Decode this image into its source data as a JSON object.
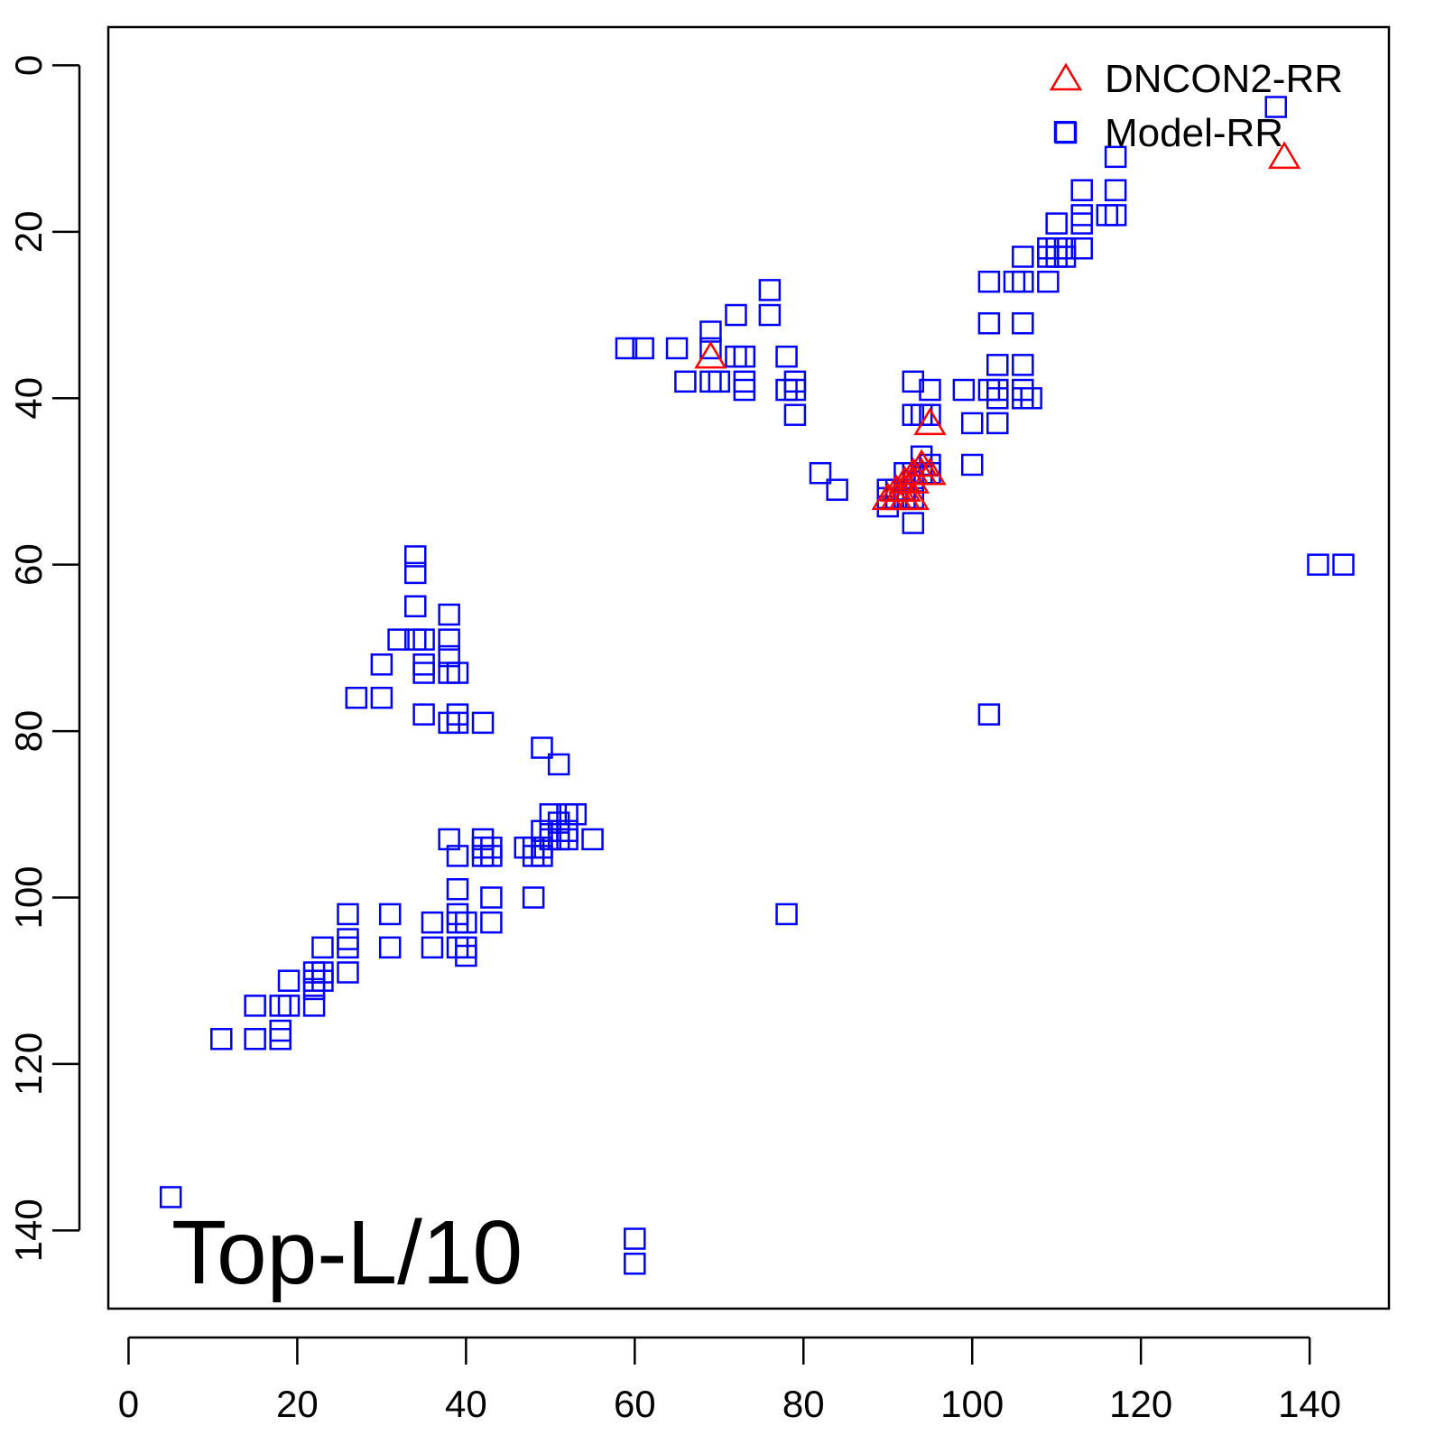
{
  "chart_data": {
    "type": "scatter",
    "title": "",
    "xlabel": "",
    "ylabel": "",
    "xlim": [
      -2.4,
      149.4
    ],
    "ylim": [
      -4.6,
      149.4
    ],
    "y_reversed": true,
    "x_ticks": [
      0,
      20,
      40,
      60,
      80,
      100,
      120,
      140
    ],
    "y_ticks": [
      0,
      20,
      40,
      60,
      80,
      100,
      120,
      140
    ],
    "grid": false,
    "legend_position": "top-right",
    "annotation": "Top-L/10",
    "series": [
      {
        "name": "DNCON2-RR",
        "marker": "triangle",
        "color": "#ff0000",
        "points": [
          [
            69,
            35
          ],
          [
            95,
            43
          ],
          [
            137,
            11
          ],
          [
            94,
            48
          ],
          [
            94,
            49
          ],
          [
            93,
            49
          ],
          [
            93,
            50
          ],
          [
            92,
            50
          ],
          [
            92,
            51
          ],
          [
            91,
            51
          ],
          [
            91,
            52
          ],
          [
            90,
            52
          ],
          [
            92,
            52
          ],
          [
            93,
            52
          ],
          [
            95,
            49
          ]
        ]
      },
      {
        "name": "Model-RR",
        "marker": "square",
        "color": "#0000ff",
        "points": [
          [
            136,
            5
          ],
          [
            111,
            8
          ],
          [
            117,
            11
          ],
          [
            113,
            15
          ],
          [
            117,
            15
          ],
          [
            110,
            19
          ],
          [
            113,
            18
          ],
          [
            113,
            19
          ],
          [
            116,
            18
          ],
          [
            117,
            18
          ],
          [
            109,
            22
          ],
          [
            110,
            22
          ],
          [
            111,
            22
          ],
          [
            113,
            22
          ],
          [
            109,
            23
          ],
          [
            110,
            23
          ],
          [
            111,
            23
          ],
          [
            106,
            23
          ],
          [
            102,
            26
          ],
          [
            105,
            26
          ],
          [
            106,
            26
          ],
          [
            109,
            26
          ],
          [
            102,
            31
          ],
          [
            106,
            31
          ],
          [
            103,
            36
          ],
          [
            106,
            36
          ],
          [
            99,
            39
          ],
          [
            102,
            39
          ],
          [
            103,
            39
          ],
          [
            106,
            39
          ],
          [
            103,
            40
          ],
          [
            106,
            40
          ],
          [
            107,
            40
          ],
          [
            100,
            43
          ],
          [
            103,
            43
          ],
          [
            100,
            48
          ],
          [
            93,
            38
          ],
          [
            95,
            39
          ],
          [
            93,
            42
          ],
          [
            94,
            42
          ],
          [
            95,
            42
          ],
          [
            94,
            47
          ],
          [
            95,
            48
          ],
          [
            95,
            49
          ],
          [
            93,
            49
          ],
          [
            92,
            49
          ],
          [
            94,
            49
          ],
          [
            93,
            50
          ],
          [
            92,
            51
          ],
          [
            91,
            51
          ],
          [
            90,
            51
          ],
          [
            90,
            52
          ],
          [
            91,
            52
          ],
          [
            92,
            52
          ],
          [
            93,
            52
          ],
          [
            90,
            53
          ],
          [
            93,
            55
          ],
          [
            82,
            49
          ],
          [
            84,
            51
          ],
          [
            76,
            27
          ],
          [
            76,
            30
          ],
          [
            72,
            30
          ],
          [
            69,
            32
          ],
          [
            69,
            34
          ],
          [
            59,
            34
          ],
          [
            61,
            34
          ],
          [
            65,
            34
          ],
          [
            72,
            35
          ],
          [
            73,
            35
          ],
          [
            78,
            35
          ],
          [
            66,
            38
          ],
          [
            69,
            38
          ],
          [
            70,
            38
          ],
          [
            73,
            38
          ],
          [
            79,
            38
          ],
          [
            73,
            39
          ],
          [
            78,
            39
          ],
          [
            79,
            39
          ],
          [
            79,
            42
          ],
          [
            34,
            59
          ],
          [
            34,
            61
          ],
          [
            34,
            65
          ],
          [
            38,
            66
          ],
          [
            32,
            69
          ],
          [
            34,
            69
          ],
          [
            35,
            69
          ],
          [
            38,
            69
          ],
          [
            38,
            71
          ],
          [
            30,
            72
          ],
          [
            35,
            72
          ],
          [
            35,
            73
          ],
          [
            38,
            73
          ],
          [
            39,
            73
          ],
          [
            27,
            76
          ],
          [
            30,
            76
          ],
          [
            35,
            78
          ],
          [
            39,
            78
          ],
          [
            38,
            79
          ],
          [
            39,
            79
          ],
          [
            42,
            79
          ],
          [
            49,
            82
          ],
          [
            51,
            84
          ],
          [
            50,
            90
          ],
          [
            52,
            90
          ],
          [
            53,
            90
          ],
          [
            51,
            91
          ],
          [
            50,
            92
          ],
          [
            51,
            92
          ],
          [
            49,
            92
          ],
          [
            52,
            92
          ],
          [
            55,
            93
          ],
          [
            50,
            93
          ],
          [
            51,
            93
          ],
          [
            52,
            93
          ],
          [
            38,
            93
          ],
          [
            42,
            93
          ],
          [
            42,
            94
          ],
          [
            43,
            94
          ],
          [
            47,
            94
          ],
          [
            48,
            94
          ],
          [
            49,
            94
          ],
          [
            48,
            95
          ],
          [
            49,
            95
          ],
          [
            39,
            95
          ],
          [
            42,
            95
          ],
          [
            43,
            95
          ],
          [
            39,
            99
          ],
          [
            43,
            100
          ],
          [
            48,
            100
          ],
          [
            26,
            102
          ],
          [
            31,
            102
          ],
          [
            39,
            102
          ],
          [
            78,
            102
          ],
          [
            36,
            103
          ],
          [
            39,
            103
          ],
          [
            40,
            103
          ],
          [
            43,
            103
          ],
          [
            26,
            105
          ],
          [
            26,
            106
          ],
          [
            23,
            106
          ],
          [
            31,
            106
          ],
          [
            36,
            106
          ],
          [
            39,
            106
          ],
          [
            40,
            106
          ],
          [
            40,
            107
          ],
          [
            23,
            109
          ],
          [
            22,
            109
          ],
          [
            26,
            109
          ],
          [
            22,
            110
          ],
          [
            23,
            110
          ],
          [
            19,
            110
          ],
          [
            22,
            111
          ],
          [
            15,
            113
          ],
          [
            18,
            113
          ],
          [
            19,
            113
          ],
          [
            22,
            113
          ],
          [
            18,
            116
          ],
          [
            11,
            117
          ],
          [
            15,
            117
          ],
          [
            18,
            117
          ],
          [
            5,
            136
          ],
          [
            60,
            141
          ],
          [
            60,
            144
          ],
          [
            102,
            78
          ],
          [
            141,
            60
          ],
          [
            144,
            60
          ]
        ]
      }
    ]
  }
}
